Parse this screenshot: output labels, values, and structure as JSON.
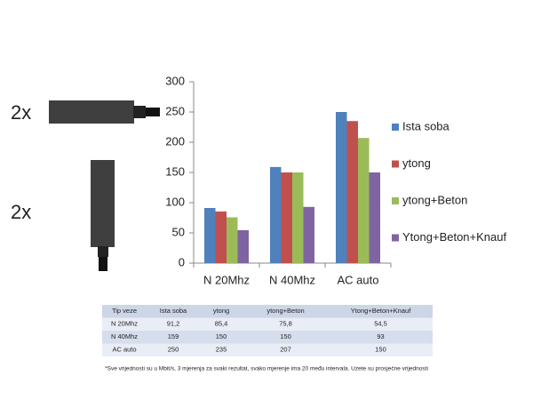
{
  "chart_data": {
    "type": "bar",
    "categories": [
      "N 20Mhz",
      "N 40Mhz",
      "AC auto"
    ],
    "series": [
      {
        "name": "Ista soba",
        "color": "#4f81bd",
        "values": [
          91.2,
          159,
          250
        ]
      },
      {
        "name": "ytong",
        "color": "#c0504d",
        "values": [
          85.4,
          150,
          235
        ]
      },
      {
        "name": "ytong+Beton",
        "color": "#9bbb59",
        "values": [
          75.8,
          150,
          207
        ]
      },
      {
        "name": "Ytong+Beton+Knauf",
        "color": "#8064a2",
        "values": [
          54.5,
          93,
          150
        ]
      }
    ],
    "ylim": [
      0,
      300
    ],
    "yticks": [
      0,
      50,
      100,
      150,
      200,
      250,
      300
    ],
    "grid": false,
    "legend": "right"
  },
  "labels": [
    "2x",
    "2x"
  ],
  "table": {
    "header": [
      "Tip veze",
      "Ista soba",
      "ytong",
      "ytong+Beton",
      "Ytong+Beton+Knauf"
    ],
    "rows": [
      [
        "N 20Mhz",
        "91,2",
        "85,4",
        "75,8",
        "54,5"
      ],
      [
        "N 40Mhz",
        "159",
        "150",
        "150",
        "93"
      ],
      [
        "AC auto",
        "250",
        "235",
        "207",
        "150"
      ]
    ]
  },
  "footnote": "*Sve vrijednosti su u Mbit/s, 3 mjerenja za svaki rezultat, svako mjerenje ima 20 među intervala. Uzete su prosječne vrijednosti"
}
